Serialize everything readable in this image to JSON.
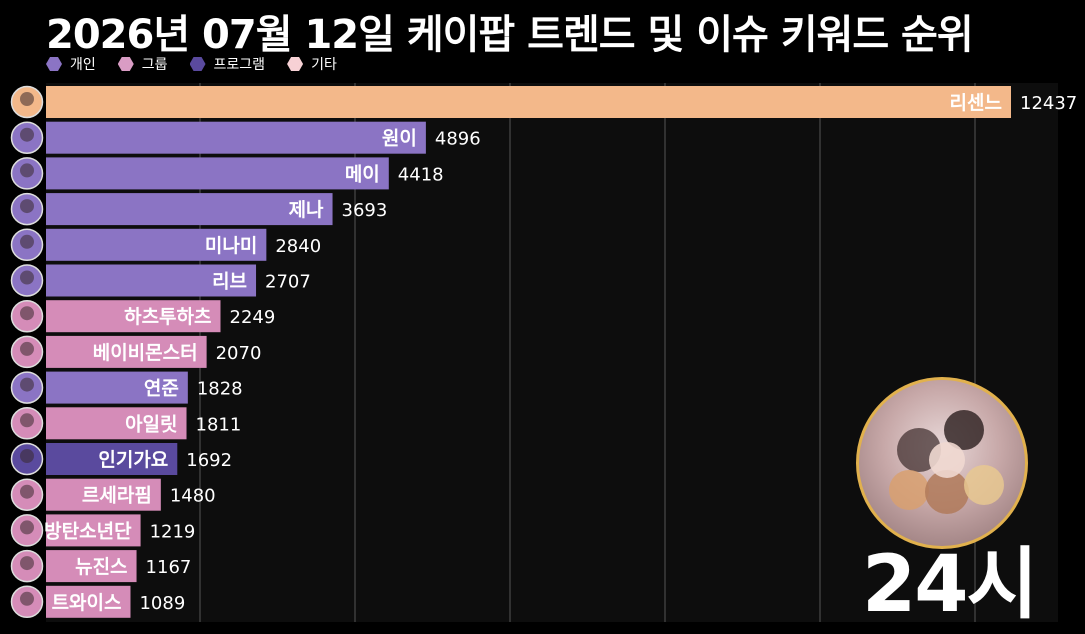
{
  "chart_data": {
    "type": "bar",
    "orientation": "horizontal",
    "title": "2026년 07월 12일 케이팝 트렌드 및 이슈 키워드 순위",
    "legend": [
      {
        "name": "개인",
        "color": "#8b74c4"
      },
      {
        "name": "그룹",
        "color": "#d99cc4"
      },
      {
        "name": "프로그램",
        "color": "#5a4a9e"
      },
      {
        "name": "기타",
        "color": "#f7d1d5"
      }
    ],
    "categories": [
      "리센느",
      "원이",
      "메이",
      "제나",
      "미나미",
      "리브",
      "하츠투하츠",
      "베이비몬스터",
      "연준",
      "아일릿",
      "인기가요",
      "르세라핌",
      "방탄소년단",
      "뉴진스",
      "트와이스"
    ],
    "values": [
      12437,
      4896,
      4418,
      3693,
      2840,
      2707,
      2249,
      2070,
      1828,
      1811,
      1692,
      1480,
      1219,
      1167,
      1089
    ],
    "groups": [
      "기타",
      "개인",
      "개인",
      "개인",
      "개인",
      "개인",
      "그룹",
      "그룹",
      "개인",
      "그룹",
      "프로그램",
      "그룹",
      "그룹",
      "그룹",
      "그룹"
    ],
    "bar_colors": [
      "#f3b88a",
      "#8b74c4",
      "#8b74c4",
      "#8b74c4",
      "#8b74c4",
      "#8b74c4",
      "#d58cb8",
      "#d58cb8",
      "#8b74c4",
      "#d58cb8",
      "#5a4a9e",
      "#d58cb8",
      "#d58cb8",
      "#d58cb8",
      "#d58cb8"
    ],
    "xlim": [
      0,
      12437
    ],
    "grid": true
  },
  "hour_label": "24시"
}
